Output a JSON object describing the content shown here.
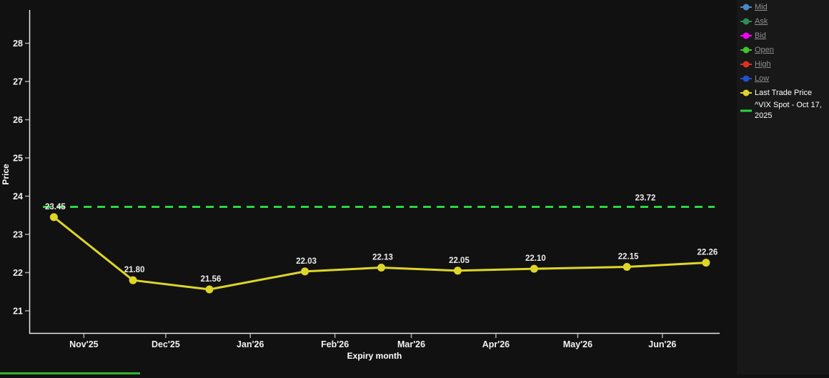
{
  "page": {
    "chart_background": "#111111",
    "panel_background": "#181818",
    "bottom_bar_color": "#2cb52c"
  },
  "chart_data": {
    "type": "line",
    "title": "",
    "xlabel": "Expiry month",
    "ylabel": "Price",
    "x_axis": {
      "type": "datetime",
      "domain": [
        "2025-10-12",
        "2026-06-22"
      ],
      "ticks": [
        {
          "date": "2025-11-01",
          "label": "Nov'25"
        },
        {
          "date": "2025-12-01",
          "label": "Dec'25"
        },
        {
          "date": "2026-01-01",
          "label": "Jan'26"
        },
        {
          "date": "2026-02-01",
          "label": "Feb'26"
        },
        {
          "date": "2026-03-01",
          "label": "Mar'26"
        },
        {
          "date": "2026-04-01",
          "label": "Apr'26"
        },
        {
          "date": "2026-05-01",
          "label": "May'26"
        },
        {
          "date": "2026-06-01",
          "label": "Jun'26"
        }
      ]
    },
    "y_axis": {
      "min": 20.42,
      "max": 28.87,
      "ticks": [
        21,
        22,
        23,
        24,
        25,
        26,
        27,
        28
      ]
    },
    "grid": false,
    "legend_position": "top-right",
    "series": [
      {
        "name": "Last Trade Price",
        "color": "#ddd629",
        "points": [
          {
            "date": "2025-10-21",
            "value": 23.45,
            "label": "23.45"
          },
          {
            "date": "2025-11-19",
            "value": 21.8,
            "label": "21.80"
          },
          {
            "date": "2025-12-17",
            "value": 21.56,
            "label": "21.56"
          },
          {
            "date": "2026-01-21",
            "value": 22.03,
            "label": "22.03"
          },
          {
            "date": "2026-02-18",
            "value": 22.13,
            "label": "22.13"
          },
          {
            "date": "2026-03-18",
            "value": 22.05,
            "label": "22.05"
          },
          {
            "date": "2026-04-15",
            "value": 22.1,
            "label": "22.10"
          },
          {
            "date": "2026-05-19",
            "value": 22.15,
            "label": "22.15"
          },
          {
            "date": "2026-06-17",
            "value": 22.26,
            "label": "22.26"
          }
        ]
      }
    ],
    "reference_line": {
      "name": "^VIX Spot - Oct 17, 2025",
      "value": 23.72,
      "label": "23.72",
      "color": "#2ed544",
      "style": "dashed",
      "start_date": "2025-10-17"
    }
  },
  "legend": {
    "items": [
      {
        "label": "Mid",
        "color": "#4a89c8",
        "active": false,
        "icon": "line-marker"
      },
      {
        "label": "Ask",
        "color": "#2e8b57",
        "active": false,
        "icon": "line-marker"
      },
      {
        "label": "Bid",
        "color": "#ff00ff",
        "active": false,
        "icon": "line-marker"
      },
      {
        "label": "Open",
        "color": "#44c52c",
        "active": false,
        "icon": "line-marker"
      },
      {
        "label": "High",
        "color": "#dd3222",
        "active": false,
        "icon": "line-marker"
      },
      {
        "label": "Low",
        "color": "#2052cc",
        "active": false,
        "icon": "line-marker"
      },
      {
        "label": "Last Trade Price",
        "color": "#ddd629",
        "active": true,
        "icon": "line-marker"
      },
      {
        "label": "^VIX Spot - Oct 17, 2025",
        "color": "#2ed544",
        "active": true,
        "icon": "line"
      }
    ]
  }
}
